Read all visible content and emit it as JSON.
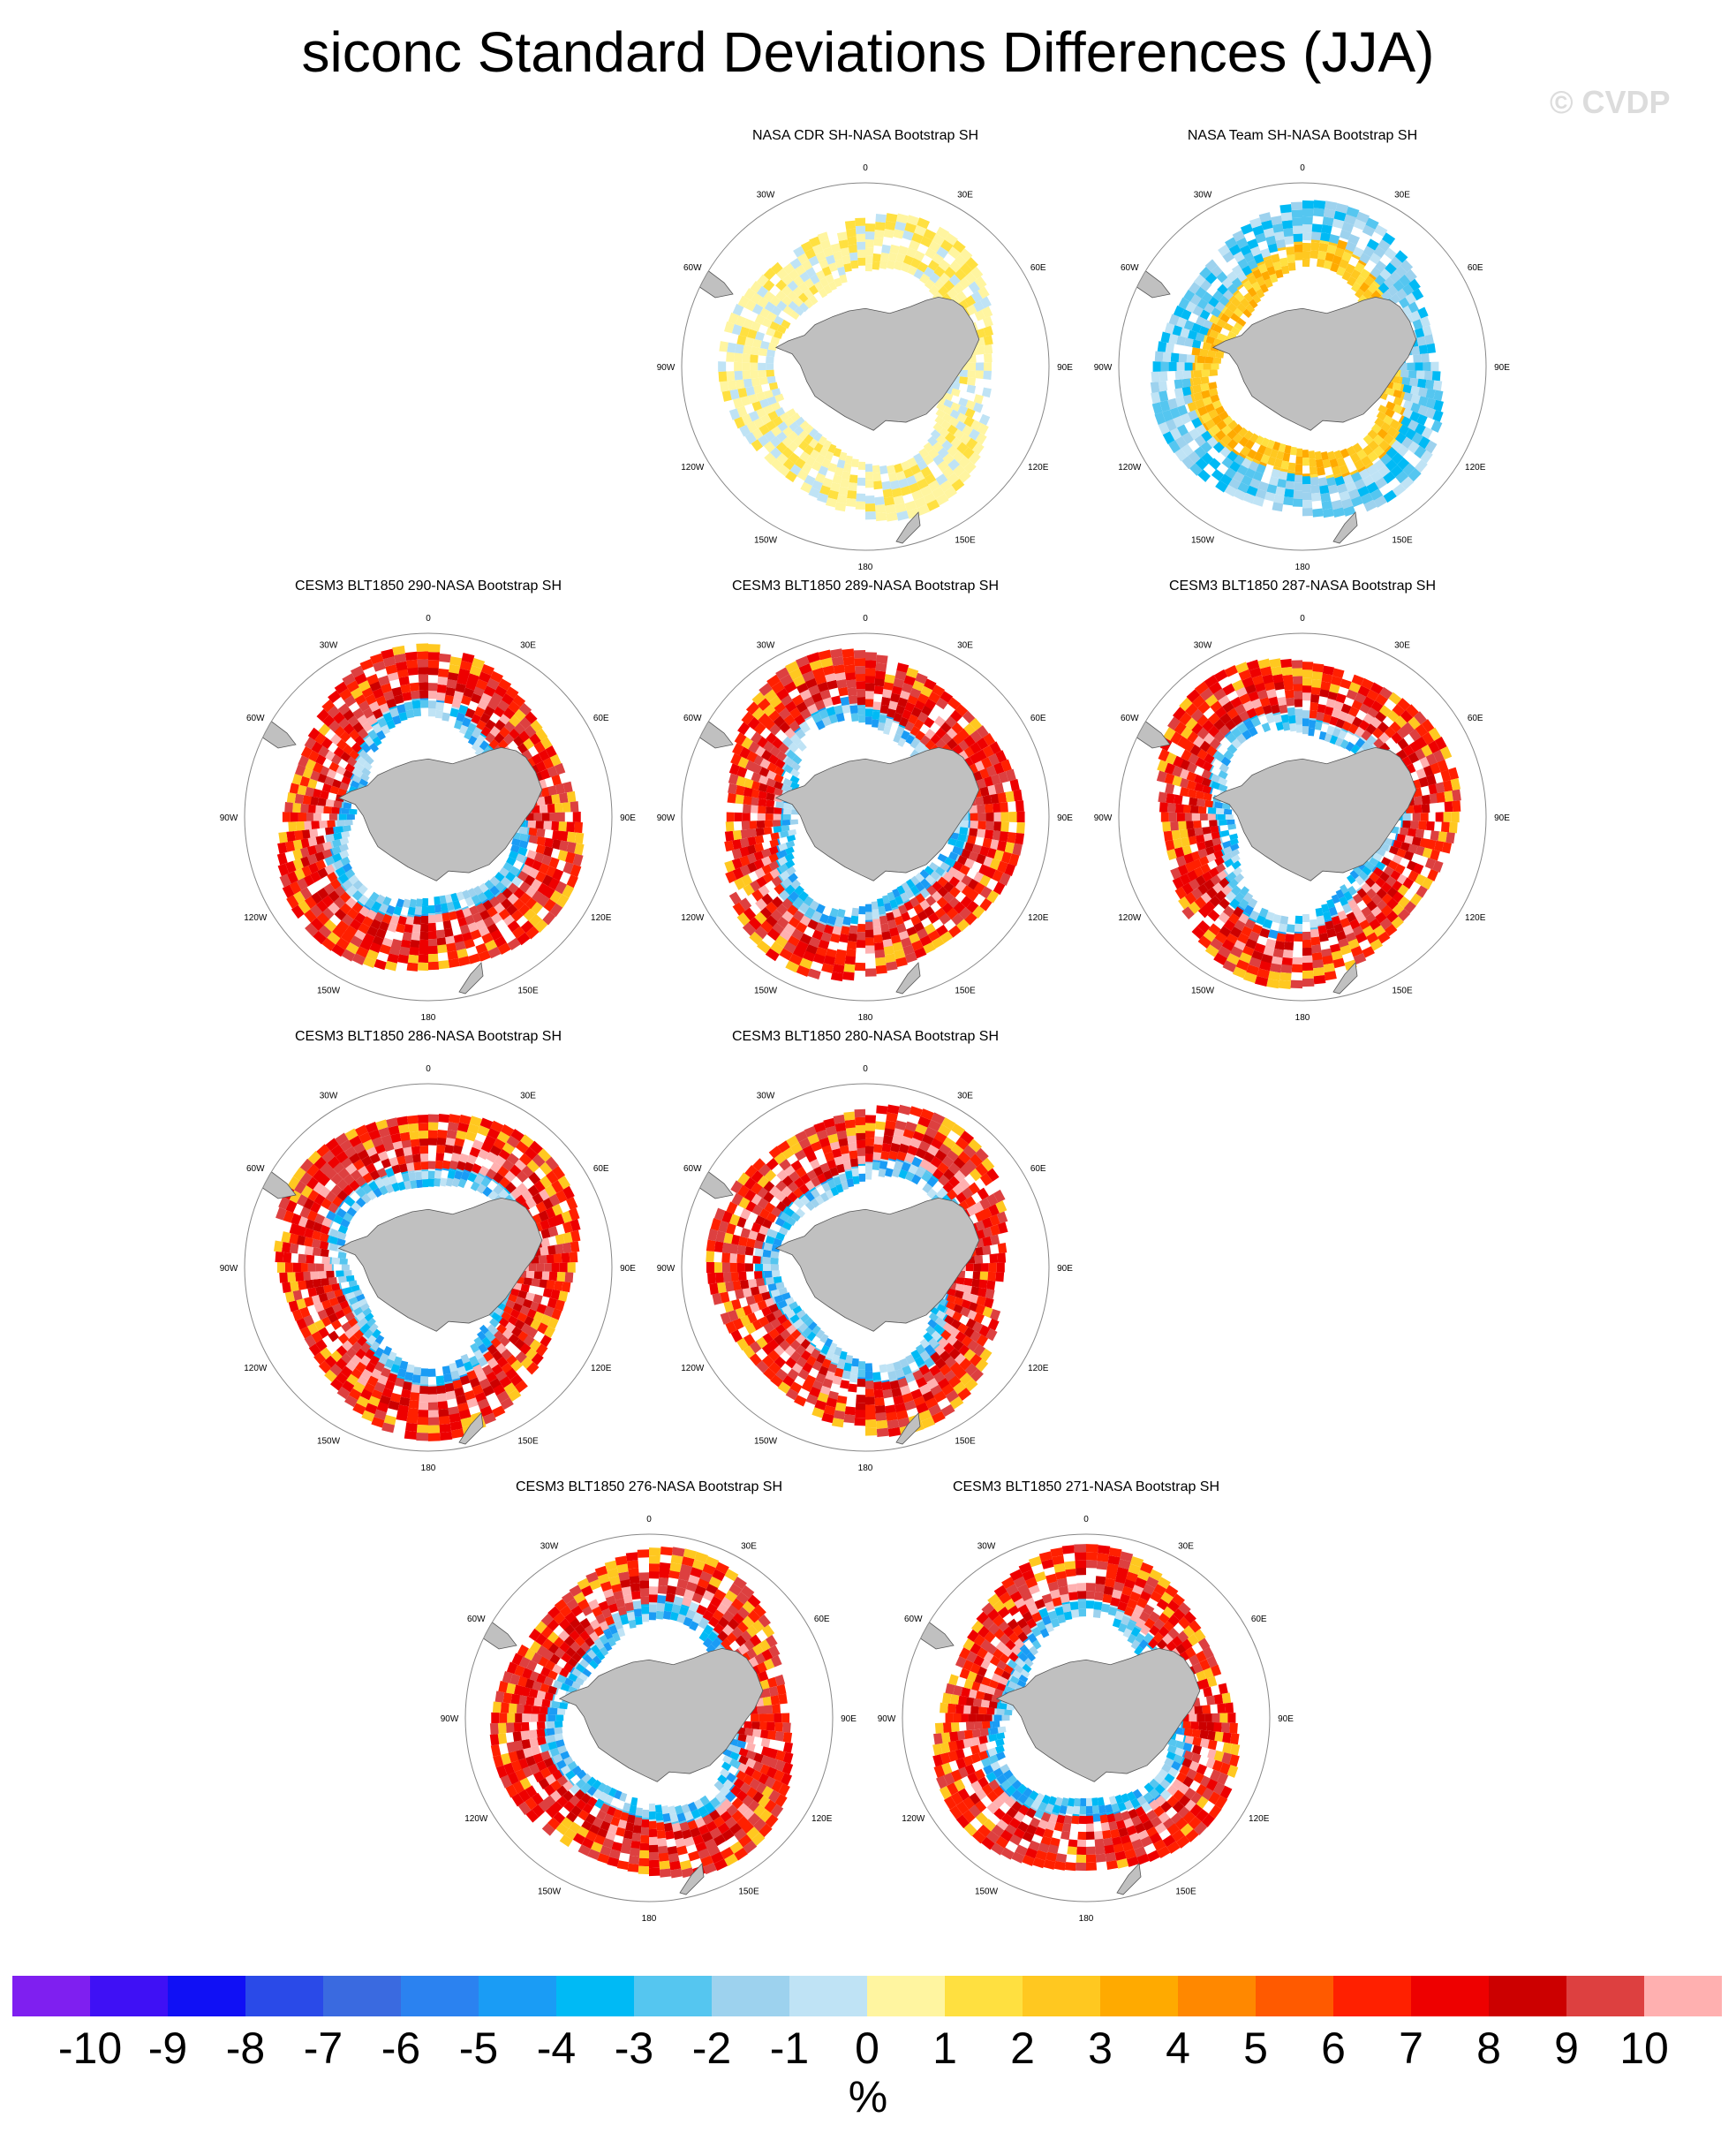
{
  "title": "siconc Standard Deviations Differences (JJA)",
  "watermark": "© CVDP",
  "colors": {
    "land": "#c0c0c0",
    "ocean": "#ffffff",
    "border": "#888888"
  },
  "chart_data": {
    "type": "heatmap",
    "projection": "south polar stereographic",
    "lon_labels": [
      "0",
      "30E",
      "60E",
      "90E",
      "120E",
      "150E",
      "180",
      "150W",
      "120W",
      "90W",
      "60W",
      "30W"
    ],
    "panels": [
      {
        "title": "NASA CDR SH-NASA Bootstrap SH",
        "pattern": "obs_cdr"
      },
      {
        "title": "NASA Team SH-NASA Bootstrap SH",
        "pattern": "obs_team"
      },
      {
        "title": "CESM3 BLT1850 290-NASA Bootstrap SH",
        "pattern": "model"
      },
      {
        "title": "CESM3 BLT1850 289-NASA Bootstrap SH",
        "pattern": "model"
      },
      {
        "title": "CESM3 BLT1850 287-NASA Bootstrap SH",
        "pattern": "model"
      },
      {
        "title": "CESM3 BLT1850 286-NASA Bootstrap SH",
        "pattern": "model"
      },
      {
        "title": "CESM3 BLT1850 280-NASA Bootstrap SH",
        "pattern": "model"
      },
      {
        "title": "CESM3 BLT1850 276-NASA Bootstrap SH",
        "pattern": "model"
      },
      {
        "title": "CESM3 BLT1850 271-NASA Bootstrap SH",
        "pattern": "model"
      }
    ],
    "colorbar": {
      "labels": [
        "-10",
        "-9",
        "-8",
        "-7",
        "-6",
        "-5",
        "-4",
        "-3",
        "-2",
        "-1",
        "0",
        "1",
        "2",
        "3",
        "4",
        "5",
        "6",
        "7",
        "8",
        "9",
        "10"
      ],
      "colors": [
        "#7f1ff0",
        "#3f10f5",
        "#1010f5",
        "#2a4ae8",
        "#3a6ae0",
        "#2b82f0",
        "#1a9cf5",
        "#00baf5",
        "#55c6f0",
        "#9dd2ee",
        "#bfe3f5",
        "#fff5a0",
        "#ffe040",
        "#ffc820",
        "#ffaa00",
        "#ff8800",
        "#ff5a00",
        "#ff2000",
        "#ee0000",
        "#cc0000",
        "#dd4040",
        "#ffb0b0"
      ],
      "unit": "%"
    }
  }
}
